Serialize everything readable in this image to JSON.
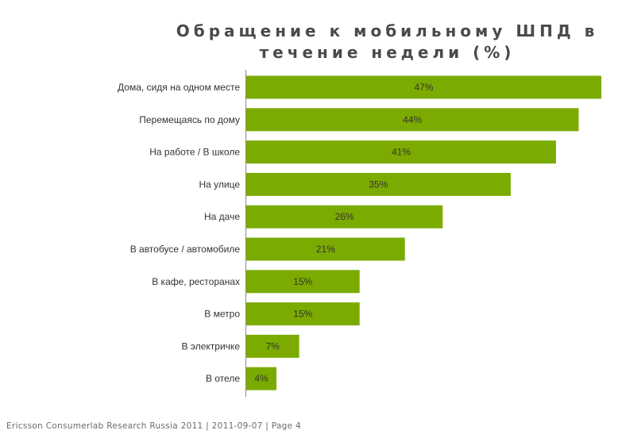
{
  "chart_data": {
    "type": "bar",
    "orientation": "horizontal",
    "title": "Обращение к мобильному ШПД в течение недели (%)",
    "categories": [
      "Дома, сидя на одном месте",
      "Перемещаясь по дому",
      "На работе / В школе",
      "На улице",
      "На даче",
      "В автобусе / автомобиле",
      "В кафе, ресторанах",
      "В метро",
      "В электричке",
      "В отеле"
    ],
    "values": [
      47,
      44,
      41,
      35,
      26,
      21,
      15,
      15,
      7,
      4
    ],
    "value_labels": [
      "47%",
      "44%",
      "41%",
      "35%",
      "26%",
      "21%",
      "15%",
      "15%",
      "7%",
      "4%"
    ],
    "xlim": [
      0,
      47
    ],
    "bar_color": "#7bab00",
    "grid": false,
    "legend": "none"
  },
  "footer": {
    "text": "Ericsson Consumerlab Research Russia 2011  |  2011-09-07  |  Page 4"
  }
}
